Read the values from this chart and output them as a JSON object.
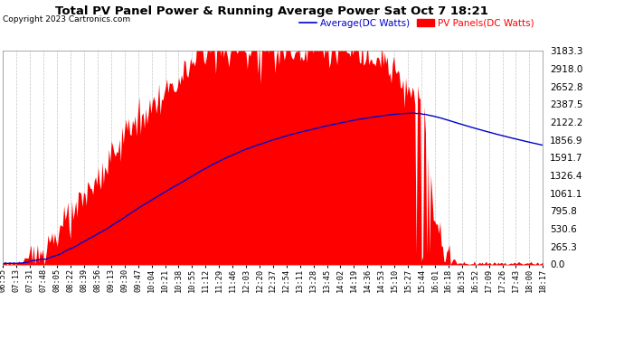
{
  "title": "Total PV Panel Power & Running Average Power Sat Oct 7 18:21",
  "copyright": "Copyright 2023 Cartronics.com",
  "legend_avg": "Average(DC Watts)",
  "legend_pv": "PV Panels(DC Watts)",
  "ylabel_values": [
    0.0,
    265.3,
    530.6,
    795.8,
    1061.1,
    1326.4,
    1591.7,
    1856.9,
    2122.2,
    2387.5,
    2652.8,
    2918.0,
    3183.3
  ],
  "ylim": [
    0,
    3183.3
  ],
  "background_color": "#ffffff",
  "plot_background": "#ffffff",
  "grid_color": "#aaaaaa",
  "pv_color": "#ff0000",
  "avg_color": "#0000cc",
  "title_color": "#000000",
  "copyright_color": "#000000",
  "xtick_labels": [
    "06:55",
    "07:13",
    "07:31",
    "07:48",
    "08:05",
    "08:22",
    "08:39",
    "08:56",
    "09:13",
    "09:30",
    "09:47",
    "10:04",
    "10:21",
    "10:38",
    "10:55",
    "11:12",
    "11:29",
    "11:46",
    "12:03",
    "12:20",
    "12:37",
    "12:54",
    "13:11",
    "13:28",
    "13:45",
    "14:02",
    "14:19",
    "14:36",
    "14:53",
    "15:10",
    "15:27",
    "15:44",
    "16:01",
    "16:18",
    "16:35",
    "16:52",
    "17:09",
    "17:26",
    "17:43",
    "18:00",
    "18:17"
  ],
  "num_points": 410
}
